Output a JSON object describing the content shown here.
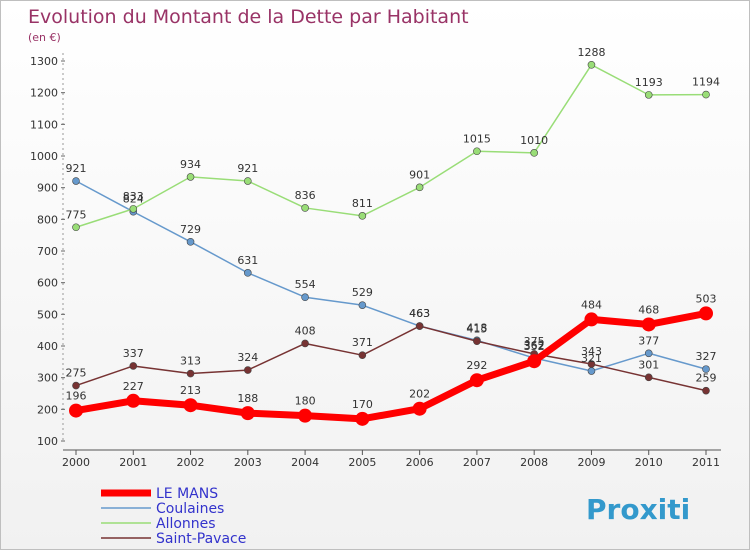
{
  "chart_data": {
    "type": "line",
    "title": "Evolution du Montant de la Dette par Habitant",
    "subtitle": "(en €)",
    "x": [
      "2000",
      "2001",
      "2002",
      "2003",
      "2004",
      "2005",
      "2006",
      "2007",
      "2008",
      "2009",
      "2010",
      "2011"
    ],
    "ylim": [
      100,
      1300
    ],
    "yticks": [
      100,
      200,
      300,
      400,
      500,
      600,
      700,
      800,
      900,
      1000,
      1100,
      1200,
      1300
    ],
    "grid": false,
    "legend_position": "bottom-left",
    "series": [
      {
        "name": "LE MANS",
        "color": "#ff0000",
        "values": [
          196,
          227,
          213,
          188,
          180,
          170,
          202,
          292,
          352,
          484,
          468,
          503
        ]
      },
      {
        "name": "Coulaines",
        "color": "#6699cc",
        "values": [
          921,
          824,
          729,
          631,
          554,
          529,
          463,
          418,
          362,
          321,
          377,
          327
        ]
      },
      {
        "name": "Allonnes",
        "color": "#99dd77",
        "values": [
          775,
          833,
          934,
          921,
          836,
          811,
          901,
          1015,
          1010,
          1288,
          1193,
          1194
        ]
      },
      {
        "name": "Saint-Pavace",
        "color": "#773333",
        "values": [
          275,
          337,
          313,
          324,
          408,
          371,
          463,
          415,
          375,
          343,
          301,
          259
        ]
      }
    ]
  },
  "logo": {
    "text": "Proxiti"
  },
  "colors": {
    "title": "#993366",
    "axis": "#333333",
    "legend_text": "#3333cc"
  }
}
